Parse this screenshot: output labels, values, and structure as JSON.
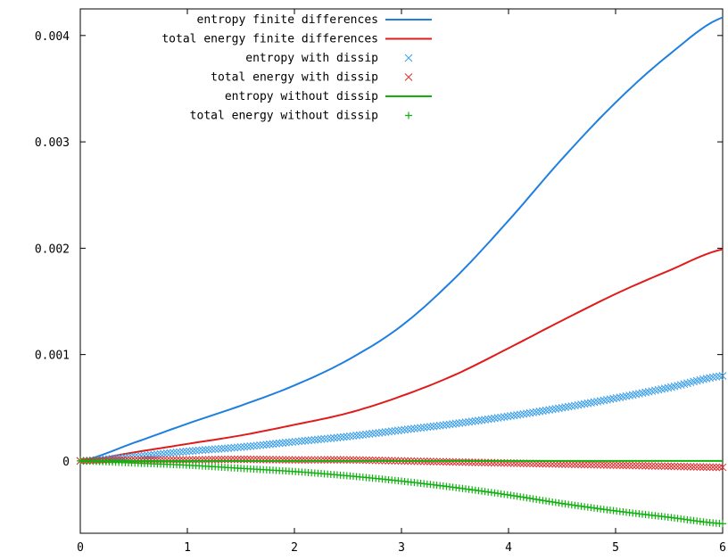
{
  "chart_data": {
    "type": "line",
    "title": "",
    "xlabel": "",
    "ylabel": "",
    "xlim": [
      0,
      6
    ],
    "ylim": [
      -0.00068,
      0.00425
    ],
    "grid": false,
    "legend_position": "top-left",
    "xticks": [
      0,
      1,
      2,
      3,
      4,
      5,
      6
    ],
    "xtick_labels": [
      "0",
      "1",
      "2",
      "3",
      "4",
      "5",
      "6"
    ],
    "yticks": [
      0,
      0.001,
      0.002,
      0.003,
      0.004
    ],
    "ytick_labels": [
      "0",
      "0.001",
      "0.002",
      "0.003",
      "0.004"
    ],
    "series": [
      {
        "name": "entropy finite differences",
        "style": "line",
        "color": "#1f7fe0",
        "x": [
          0,
          0.5,
          1,
          1.5,
          2,
          2.5,
          3,
          3.5,
          4,
          4.5,
          5,
          5.5,
          6
        ],
        "y": [
          0.0,
          0.00017,
          0.00035,
          0.00052,
          0.00071,
          0.00095,
          0.00127,
          0.00172,
          0.00226,
          0.00284,
          0.00337,
          0.00382,
          0.00417
        ]
      },
      {
        "name": "total energy finite differences",
        "style": "line",
        "color": "#e01b1b",
        "x": [
          0,
          0.5,
          1,
          1.5,
          2,
          2.5,
          3,
          3.5,
          4,
          4.5,
          5,
          5.5,
          6
        ],
        "y": [
          0.0,
          8e-05,
          0.00016,
          0.00024,
          0.00034,
          0.00045,
          0.00061,
          0.00081,
          0.00106,
          0.00132,
          0.00157,
          0.00179,
          0.00199
        ]
      },
      {
        "name": "entropy with dissip",
        "style": "markers-x",
        "color": "#3a9fe8",
        "x": [
          0,
          0.5,
          1,
          1.5,
          2,
          2.5,
          3,
          3.5,
          4,
          4.5,
          5,
          5.5,
          6
        ],
        "y": [
          0.0,
          4e-05,
          9e-05,
          0.00013,
          0.00018,
          0.00023,
          0.00029,
          0.00035,
          0.00042,
          0.0005,
          0.00059,
          0.00069,
          0.0008
        ]
      },
      {
        "name": "total energy with dissip",
        "style": "markers-x",
        "color": "#e03030",
        "x": [
          0,
          0.5,
          1,
          1.5,
          2,
          2.5,
          3,
          3.5,
          4,
          4.5,
          5,
          5.5,
          6
        ],
        "y": [
          0.0,
          1e-05,
          1e-05,
          1.5e-05,
          1e-05,
          1e-05,
          0.0,
          -1e-05,
          -2e-05,
          -3e-05,
          -4e-05,
          -5e-05,
          -6e-05
        ]
      },
      {
        "name": "entropy without dissip",
        "style": "line",
        "color": "#10b010",
        "x": [
          0,
          6
        ],
        "y": [
          0.0,
          0.0
        ]
      },
      {
        "name": "total energy without dissip",
        "style": "markers-plus",
        "color": "#10b010",
        "x": [
          0,
          0.5,
          1,
          1.5,
          2,
          2.5,
          3,
          3.5,
          4,
          4.5,
          5,
          5.5,
          6
        ],
        "y": [
          0.0,
          -2e-05,
          -4e-05,
          -7e-05,
          -0.0001,
          -0.00014,
          -0.00019,
          -0.00025,
          -0.00032,
          -0.0004,
          -0.00047,
          -0.00053,
          -0.00059
        ]
      }
    ]
  }
}
